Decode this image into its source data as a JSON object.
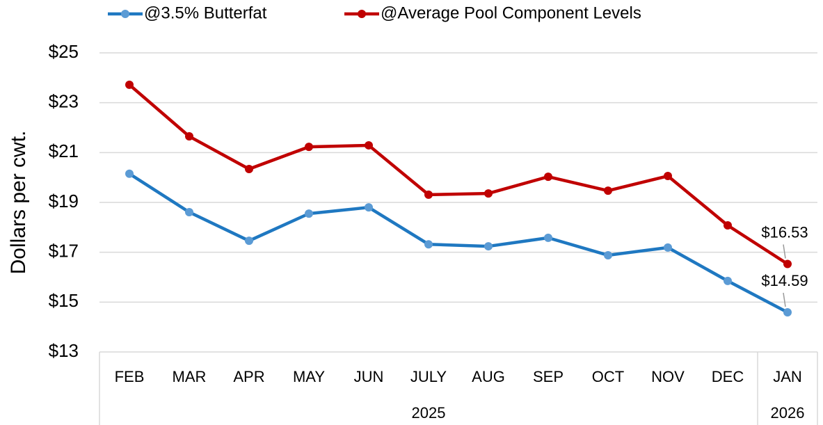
{
  "chart_data": {
    "type": "line",
    "y_label": "Dollars per cwt.",
    "categories": [
      "FEB",
      "MAR",
      "APR",
      "MAY",
      "JUN",
      "JULY",
      "AUG",
      "SEP",
      "OCT",
      "NOV",
      "DEC",
      "JAN"
    ],
    "category_groups": [
      {
        "label": "2025",
        "count": 11
      },
      {
        "label": "2026",
        "count": 1
      }
    ],
    "series": [
      {
        "name": "@3.5% Butterfat",
        "color": "#1f78c1",
        "marker_color": "#5b9bd5",
        "values": [
          20.15,
          18.61,
          17.46,
          18.55,
          18.8,
          17.32,
          17.24,
          17.58,
          16.88,
          17.19,
          15.85,
          14.59
        ],
        "value_labels": [
          null,
          null,
          null,
          null,
          null,
          null,
          null,
          null,
          null,
          null,
          null,
          "$14.59"
        ]
      },
      {
        "name": "@Average Pool Component Levels",
        "color": "#c00000",
        "marker_color": "#c00000",
        "values": [
          23.72,
          21.65,
          20.34,
          21.23,
          21.29,
          19.31,
          19.36,
          20.03,
          19.47,
          20.06,
          18.08,
          16.53
        ],
        "value_labels": [
          null,
          null,
          null,
          null,
          null,
          null,
          null,
          null,
          null,
          null,
          null,
          "$16.53"
        ]
      }
    ],
    "ylim": [
      13,
      25
    ],
    "yticks": [
      {
        "value": 13,
        "label": "$13"
      },
      {
        "value": 15,
        "label": "$15"
      },
      {
        "value": 17,
        "label": "$17"
      },
      {
        "value": 19,
        "label": "$19"
      },
      {
        "value": 21,
        "label": "$21"
      },
      {
        "value": 23,
        "label": "$23"
      },
      {
        "value": 25,
        "label": "$25"
      }
    ],
    "grid": true,
    "legend": "top"
  }
}
